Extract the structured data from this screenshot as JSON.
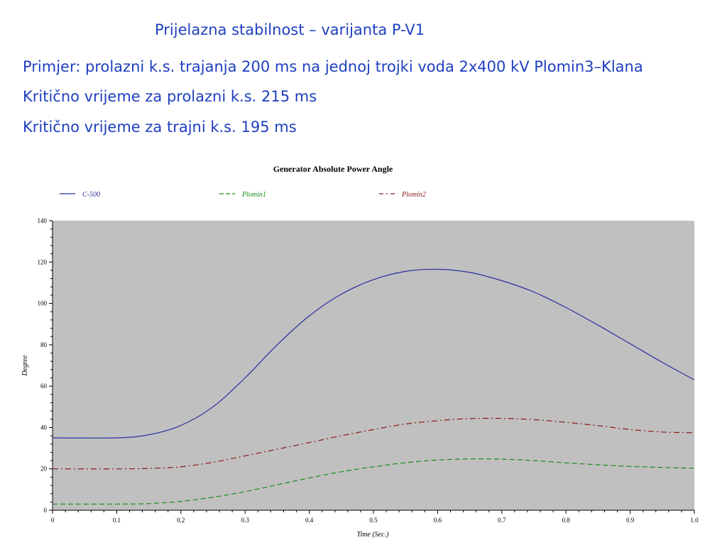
{
  "slide": {
    "title": "Prijelazna stabilnost – varijanta P-V1",
    "lines": [
      "Primjer: prolazni k.s. trajanja 200 ms na jednoj trojki voda 2x400 kV Plomin3–Klana",
      "Kritično vrijeme za prolazni k.s. 215 ms",
      "Kritično vrijeme za trajni k.s. 195 ms"
    ]
  },
  "chart_data": {
    "type": "line",
    "title": "Generator Absolute Power Angle",
    "xlabel": "Time (Sec.)",
    "ylabel": "Degree",
    "xlim": [
      0,
      1.0
    ],
    "ylim": [
      0,
      140
    ],
    "xticks": [
      "0",
      "0.1",
      "0.2",
      "0.3",
      "0.4",
      "0.5",
      "0.6",
      "0.7",
      "0.8",
      "0.9",
      "1.0"
    ],
    "yticks": [
      "0",
      "20",
      "40",
      "60",
      "80",
      "100",
      "120",
      "140"
    ],
    "legend_position": "top",
    "plot_background": "#c0c0c0",
    "x": [
      0,
      0.1,
      0.15,
      0.2,
      0.25,
      0.3,
      0.35,
      0.4,
      0.45,
      0.5,
      0.55,
      0.6,
      0.65,
      0.7,
      0.75,
      0.8,
      0.85,
      0.9,
      0.95,
      1.0
    ],
    "series": [
      {
        "name": "C-500",
        "color": "#2b2fa0",
        "dash": "solid",
        "values": [
          35,
          35,
          36.5,
          41,
          50,
          64,
          80,
          94,
          104.5,
          111.5,
          115.5,
          116.5,
          115,
          111,
          105.5,
          98,
          89.5,
          80.5,
          71.5,
          63
        ]
      },
      {
        "name": "Plomin1",
        "color": "#1a8c1a",
        "dash": "dashed",
        "values": [
          3,
          3,
          3.2,
          4.3,
          6.3,
          9,
          12.3,
          15.6,
          18.6,
          21,
          23,
          24.3,
          24.8,
          24.7,
          24,
          22.9,
          22,
          21.2,
          20.7,
          20.3
        ]
      },
      {
        "name": "Plomin2",
        "color": "#8b1a1a",
        "dash": "dash-dot",
        "values": [
          20,
          20,
          20.2,
          21,
          23.2,
          26.3,
          29.5,
          32.7,
          36,
          39,
          41.7,
          43.3,
          44.3,
          44.4,
          43.8,
          42.5,
          40.9,
          39,
          37.8,
          37.5
        ]
      }
    ]
  }
}
